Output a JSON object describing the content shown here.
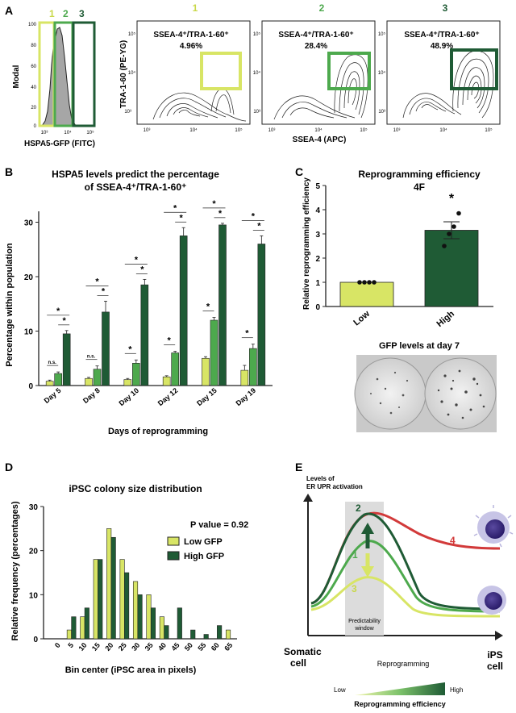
{
  "colors": {
    "c1": "#d8e565",
    "c2": "#4da94d",
    "c3": "#1f5b35",
    "red": "#d23a3a",
    "gray": "#a9a9a9"
  },
  "panelA": {
    "letter": "A",
    "gate_numbers": [
      "1",
      "2",
      "3"
    ],
    "hist_ylabel": "Modal",
    "hist_xlabel": "HSPA5-GFP (FITC)",
    "hist_yticks": [
      "100",
      "80",
      "60",
      "40",
      "20",
      "0"
    ],
    "hist_xticks": [
      "10³",
      "10⁴",
      "10⁵"
    ],
    "contour_ylabel": "TRA-1-60 (PE-YG)",
    "contour_xlabel": "SSEA-4 (APC)",
    "contour_ticks": [
      "10³",
      "10⁴",
      "10⁵"
    ],
    "plots": [
      {
        "number": "1",
        "label": "SSEA-4⁺/TRA-1-60⁺",
        "percent": "4.96%"
      },
      {
        "number": "2",
        "label": "SSEA-4⁺/TRA-1-60⁺",
        "percent": "28.4%"
      },
      {
        "number": "3",
        "label": "SSEA-4⁺/TRA-1-60⁺",
        "percent": "48.9%"
      }
    ]
  },
  "panelB": {
    "letter": "B",
    "title_line1": "HSPA5 levels predict the percentage",
    "title_line2": "of SSEA-4⁺/TRA-1-60⁺",
    "ylabel": "Percentage within population",
    "xlabel": "Days of reprogramming",
    "sig": "*",
    "ns": "n.s."
  },
  "panelC": {
    "letter": "C",
    "title_line1": "Reprogramming efficiency",
    "title_line2": "4F",
    "ylabel": "Relative reprogramming efficiency",
    "sig": "*",
    "image_caption": "GFP levels at day 7"
  },
  "panelD": {
    "letter": "D",
    "title": "iPSC colony size distribution",
    "pvalue_label": "P value = 0.92",
    "ylabel": "Relative frequency (percentages)",
    "xlabel": "Bin center (iPSC area in pixels)"
  },
  "panelE": {
    "letter": "E",
    "ylabel_line1": "Levels of",
    "ylabel_line2": "ER UPR activation",
    "window_line1": "Predictability",
    "window_line2": "window",
    "somatic_line1": "Somatic",
    "somatic_line2": "cell",
    "ips_line1": "iPS",
    "ips_line2": "cell",
    "reprogramming": "Reprogramming",
    "low": "Low",
    "high": "High",
    "efficiency": "Reprogramming efficiency",
    "curve_numbers": [
      "1",
      "2",
      "3",
      "4"
    ]
  },
  "chart_data": [
    {
      "type": "bar",
      "categories": [
        "Day 5",
        "Day 8",
        "Day 10",
        "Day 12",
        "Day 15",
        "Day 19"
      ],
      "series": [
        {
          "values": [
            0.8,
            1.3,
            1.1,
            1.6,
            5.0,
            2.8
          ],
          "errors": [
            0.2,
            0.2,
            0.2,
            0.2,
            0.3,
            0.9
          ]
        },
        {
          "values": [
            2.2,
            3.0,
            4.1,
            6.0,
            12.0,
            6.8
          ],
          "errors": [
            0.3,
            0.6,
            0.6,
            0.3,
            0.5,
            0.8
          ]
        },
        {
          "values": [
            9.5,
            13.5,
            18.5,
            27.5,
            29.5,
            26.0
          ],
          "errors": [
            0.6,
            2.0,
            1.0,
            1.5,
            0.3,
            1.5
          ]
        }
      ],
      "ylim": [
        0,
        32
      ],
      "yticks": [
        0,
        10,
        20,
        30
      ],
      "annotations": {
        "ns_pairs": [
          "Day 5 (1 vs 2)",
          "Day 8 (1 vs 2)"
        ],
        "other_pairs": "*"
      }
    },
    {
      "type": "bar",
      "categories": [
        "Low",
        "High"
      ],
      "values": [
        1.0,
        3.15
      ],
      "errors": [
        0.0,
        0.35
      ],
      "points": [
        [
          1,
          1,
          1,
          1
        ],
        [
          2.5,
          3.0,
          3.3,
          3.85
        ]
      ],
      "ylim": [
        0,
        5
      ],
      "yticks": [
        0,
        1,
        2,
        3,
        4,
        5
      ]
    },
    {
      "type": "bar",
      "categories": [
        "0",
        "5",
        "10",
        "15",
        "20",
        "25",
        "30",
        "35",
        "40",
        "45",
        "50",
        "55",
        "60",
        "65"
      ],
      "series": [
        {
          "name": "Low GFP",
          "values": [
            0,
            2,
            5,
            18,
            25,
            18,
            13,
            10,
            5,
            0,
            0,
            0,
            0,
            2
          ]
        },
        {
          "name": "High GFP",
          "values": [
            0,
            5,
            7,
            18,
            23,
            15,
            10,
            7,
            3,
            7,
            2,
            1,
            3,
            0
          ]
        }
      ],
      "ylim": [
        0,
        30
      ],
      "yticks": [
        0,
        10,
        20,
        30
      ]
    }
  ]
}
